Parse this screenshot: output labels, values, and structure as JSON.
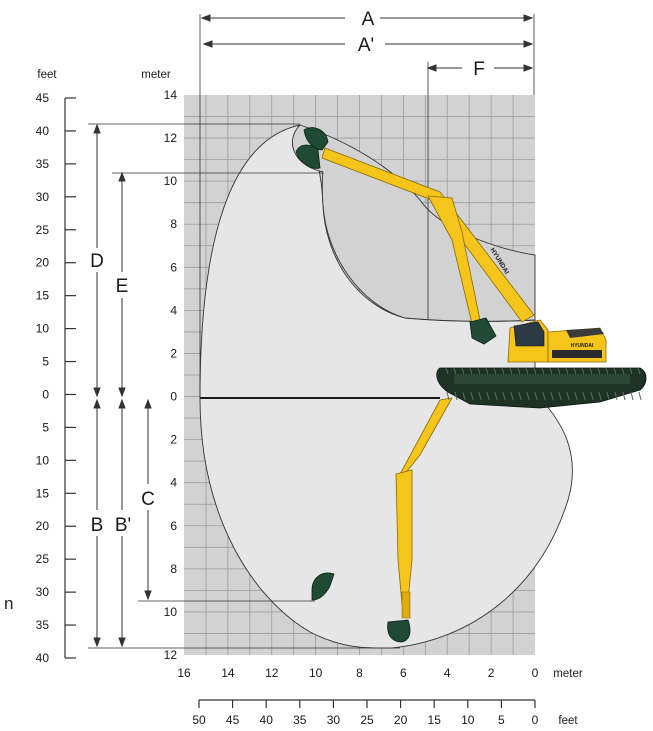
{
  "units": {
    "feet": "feet",
    "meter": "meter"
  },
  "axes": {
    "left_feet_ticks": [
      "45",
      "40",
      "35",
      "30",
      "25",
      "20",
      "15",
      "10",
      "5",
      "0",
      "5",
      "10",
      "15",
      "20",
      "25",
      "30",
      "35",
      "40"
    ],
    "left_meter_ticks": [
      "14",
      "12",
      "10",
      "8",
      "6",
      "4",
      "2",
      "0",
      "2",
      "4",
      "6",
      "8",
      "10",
      "12"
    ],
    "bottom_meter_ticks": [
      "16",
      "14",
      "12",
      "10",
      "8",
      "6",
      "4",
      "2",
      "0"
    ],
    "bottom_feet_ticks": [
      "50",
      "45",
      "40",
      "35",
      "30",
      "25",
      "20",
      "15",
      "10",
      "5",
      "0"
    ]
  },
  "dimensions": {
    "A": "A",
    "A_prime": "A'",
    "F": "F",
    "D": "D",
    "E": "E",
    "B": "B",
    "B_prime": "B'",
    "C": "C"
  },
  "branding": {
    "arm_logo": "HYUNDAI",
    "cab_logo": "HYUNDAI"
  },
  "stray_label": "n",
  "colors": {
    "grid_background": "#d2d2d2",
    "reach_envelope": "#e6e6e6",
    "excavator_yellow": "#f5c51c",
    "track_green": "#1e3326",
    "bucket_green": "#1f4a33"
  }
}
